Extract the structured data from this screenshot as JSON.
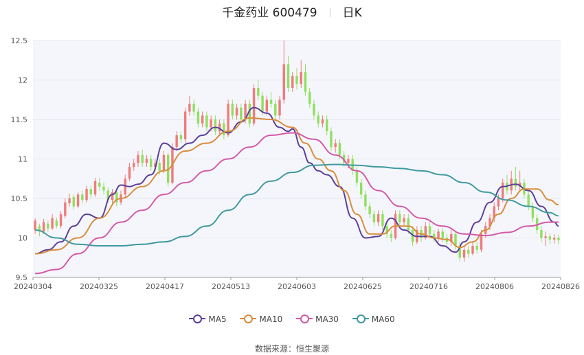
{
  "header": {
    "stock_name": "千金药业 600479",
    "period": "日K"
  },
  "legend": [
    {
      "label": "MA5",
      "color": "#5b3f9a"
    },
    {
      "label": "MA10",
      "color": "#d98c3a"
    },
    {
      "label": "MA30",
      "color": "#d359a8"
    },
    {
      "label": "MA60",
      "color": "#3f9aa0"
    }
  ],
  "source": {
    "label": "数据来源：",
    "name": "恒生聚源"
  },
  "colors": {
    "up": "#f07b7b",
    "down": "#90e060"
  },
  "chart_data": {
    "type": "candlestick",
    "ylim": [
      9.5,
      12.5
    ],
    "y_ticks": [
      "9.5",
      "10",
      "10.5",
      "11",
      "11.5",
      "12",
      "12.5"
    ],
    "x_ticks": [
      "20240304",
      "20240325",
      "20240417",
      "20240513",
      "20240603",
      "20240625",
      "20240716",
      "20240806",
      "20240826"
    ],
    "n_days": 123,
    "candles": [
      [
        10.1,
        10.22,
        10.05,
        10.25
      ],
      [
        10.15,
        10.08,
        10.02,
        10.18
      ],
      [
        10.08,
        10.2,
        10.05,
        10.24
      ],
      [
        10.18,
        10.12,
        10.08,
        10.22
      ],
      [
        10.12,
        10.25,
        10.1,
        10.3
      ],
      [
        10.22,
        10.15,
        10.12,
        10.26
      ],
      [
        10.15,
        10.3,
        10.12,
        10.34
      ],
      [
        10.28,
        10.45,
        10.25,
        10.5
      ],
      [
        10.44,
        10.5,
        10.4,
        10.56
      ],
      [
        10.52,
        10.4,
        10.36,
        10.55
      ],
      [
        10.4,
        10.55,
        10.38,
        10.58
      ],
      [
        10.55,
        10.48,
        10.44,
        10.6
      ],
      [
        10.48,
        10.62,
        10.45,
        10.66
      ],
      [
        10.62,
        10.55,
        10.5,
        10.66
      ],
      [
        10.55,
        10.72,
        10.52,
        10.76
      ],
      [
        10.7,
        10.65,
        10.6,
        10.76
      ],
      [
        10.65,
        10.6,
        10.55,
        10.7
      ],
      [
        10.6,
        10.48,
        10.44,
        10.64
      ],
      [
        10.48,
        10.58,
        10.44,
        10.62
      ],
      [
        10.58,
        10.45,
        10.4,
        10.62
      ],
      [
        10.45,
        10.55,
        10.42,
        10.6
      ],
      [
        10.55,
        10.75,
        10.52,
        10.8
      ],
      [
        10.75,
        10.9,
        10.72,
        10.95
      ],
      [
        10.9,
        10.95,
        10.85,
        11.0
      ],
      [
        10.95,
        11.05,
        10.9,
        11.1
      ],
      [
        11.05,
        10.95,
        10.9,
        11.12
      ],
      [
        10.95,
        11.0,
        10.9,
        11.05
      ],
      [
        11.0,
        10.9,
        10.85,
        11.05
      ],
      [
        10.9,
        10.95,
        10.85,
        11.0
      ],
      [
        10.95,
        10.85,
        10.8,
        11.0
      ],
      [
        10.85,
        11.05,
        10.82,
        11.1
      ],
      [
        11.05,
        10.7,
        10.65,
        11.08
      ],
      [
        10.7,
        11.15,
        10.68,
        11.2
      ],
      [
        11.15,
        11.3,
        11.1,
        11.35
      ],
      [
        11.3,
        11.25,
        11.2,
        11.35
      ],
      [
        11.25,
        11.6,
        11.2,
        11.65
      ],
      [
        11.6,
        11.7,
        11.55,
        11.8
      ],
      [
        11.7,
        11.6,
        11.55,
        11.75
      ],
      [
        11.6,
        11.45,
        11.4,
        11.65
      ],
      [
        11.45,
        11.55,
        11.4,
        11.6
      ],
      [
        11.55,
        11.4,
        11.35,
        11.6
      ],
      [
        11.4,
        11.5,
        11.35,
        11.55
      ],
      [
        11.5,
        11.35,
        11.3,
        11.55
      ],
      [
        11.35,
        11.45,
        11.3,
        11.5
      ],
      [
        11.45,
        11.3,
        11.25,
        11.5
      ],
      [
        11.3,
        11.7,
        11.28,
        11.75
      ],
      [
        11.7,
        11.55,
        11.5,
        11.75
      ],
      [
        11.55,
        11.65,
        11.5,
        11.7
      ],
      [
        11.65,
        11.5,
        11.45,
        11.7
      ],
      [
        11.5,
        11.7,
        11.45,
        11.75
      ],
      [
        11.7,
        11.45,
        11.4,
        11.75
      ],
      [
        11.45,
        11.9,
        11.42,
        11.95
      ],
      [
        11.9,
        11.8,
        11.75,
        12.0
      ],
      [
        11.8,
        11.6,
        11.55,
        11.85
      ],
      [
        11.6,
        11.75,
        11.55,
        11.8
      ],
      [
        11.75,
        11.7,
        11.65,
        11.85
      ],
      [
        11.7,
        11.55,
        11.5,
        11.75
      ],
      [
        11.55,
        11.75,
        11.5,
        11.8
      ],
      [
        11.75,
        12.2,
        11.7,
        12.5
      ],
      [
        12.2,
        11.9,
        11.85,
        12.3
      ],
      [
        11.9,
        12.05,
        11.85,
        12.1
      ],
      [
        12.05,
        11.95,
        11.88,
        12.15
      ],
      [
        11.95,
        12.1,
        11.9,
        12.25
      ],
      [
        12.1,
        11.85,
        11.8,
        12.2
      ],
      [
        11.85,
        11.7,
        11.65,
        11.9
      ],
      [
        11.7,
        11.55,
        11.5,
        11.75
      ],
      [
        11.55,
        11.45,
        11.4,
        11.6
      ],
      [
        11.45,
        11.5,
        11.4,
        11.55
      ],
      [
        11.5,
        11.35,
        11.3,
        11.55
      ],
      [
        11.35,
        11.15,
        11.1,
        11.4
      ],
      [
        11.15,
        11.2,
        11.08,
        11.25
      ],
      [
        11.2,
        11.05,
        11.0,
        11.25
      ],
      [
        11.05,
        10.95,
        10.9,
        11.1
      ],
      [
        10.95,
        11.0,
        10.88,
        11.05
      ],
      [
        11.0,
        10.85,
        10.8,
        11.05
      ],
      [
        10.85,
        10.7,
        10.65,
        10.9
      ],
      [
        10.7,
        10.55,
        10.5,
        10.75
      ],
      [
        10.55,
        10.4,
        10.35,
        10.6
      ],
      [
        10.4,
        10.3,
        10.25,
        10.45
      ],
      [
        10.3,
        10.2,
        10.15,
        10.35
      ],
      [
        10.2,
        10.3,
        10.15,
        10.35
      ],
      [
        10.3,
        10.15,
        10.1,
        10.35
      ],
      [
        10.15,
        10.05,
        10.0,
        10.2
      ],
      [
        10.05,
        10.0,
        9.95,
        10.1
      ],
      [
        10.0,
        10.3,
        9.98,
        10.35
      ],
      [
        10.3,
        10.2,
        10.15,
        10.35
      ],
      [
        10.2,
        10.25,
        10.15,
        10.3
      ],
      [
        10.25,
        10.1,
        10.05,
        10.3
      ],
      [
        10.1,
        9.95,
        9.9,
        10.15
      ],
      [
        9.95,
        10.1,
        9.92,
        10.15
      ],
      [
        10.1,
        10.0,
        9.95,
        10.15
      ],
      [
        10.0,
        10.15,
        9.98,
        10.2
      ],
      [
        10.15,
        10.05,
        10.0,
        10.2
      ],
      [
        10.05,
        10.0,
        9.95,
        10.1
      ],
      [
        10.0,
        10.08,
        9.95,
        10.12
      ],
      [
        10.08,
        10.0,
        9.95,
        10.12
      ],
      [
        10.0,
        9.95,
        9.9,
        10.05
      ],
      [
        9.95,
        10.05,
        9.9,
        10.1
      ],
      [
        10.05,
        9.9,
        9.85,
        10.08
      ],
      [
        9.9,
        9.75,
        9.7,
        9.95
      ],
      [
        9.75,
        9.85,
        9.7,
        9.9
      ],
      [
        9.85,
        9.8,
        9.75,
        9.9
      ],
      [
        9.8,
        9.9,
        9.78,
        9.95
      ],
      [
        9.9,
        9.85,
        9.8,
        9.95
      ],
      [
        9.85,
        10.05,
        9.82,
        10.1
      ],
      [
        10.05,
        10.15,
        10.0,
        10.2
      ],
      [
        10.15,
        10.25,
        10.1,
        10.3
      ],
      [
        10.25,
        10.4,
        10.2,
        10.45
      ],
      [
        10.4,
        10.5,
        10.35,
        10.55
      ],
      [
        10.5,
        10.7,
        10.45,
        10.75
      ],
      [
        10.7,
        10.6,
        10.55,
        10.8
      ],
      [
        10.6,
        10.75,
        10.55,
        10.85
      ],
      [
        10.75,
        10.65,
        10.6,
        10.9
      ],
      [
        10.65,
        10.7,
        10.6,
        10.85
      ],
      [
        10.7,
        10.55,
        10.5,
        10.75
      ],
      [
        10.55,
        10.4,
        10.35,
        10.6
      ],
      [
        10.4,
        10.25,
        10.2,
        10.45
      ],
      [
        10.25,
        10.1,
        10.05,
        10.3
      ],
      [
        10.1,
        10.0,
        9.95,
        10.15
      ],
      [
        10.0,
        10.02,
        9.9,
        10.08
      ],
      [
        10.02,
        9.98,
        9.92,
        10.06
      ],
      [
        9.98,
        10.0,
        9.93,
        10.05
      ],
      [
        10.0,
        9.97,
        9.92,
        10.04
      ]
    ],
    "series": [
      {
        "name": "MA5",
        "x": [
          0,
          3,
          6,
          9,
          12,
          15,
          18,
          20,
          22,
          24,
          27,
          30,
          33,
          36,
          39,
          42,
          45,
          48,
          51,
          54,
          57,
          59,
          60,
          62,
          64,
          66,
          68,
          71,
          74,
          77,
          80,
          83,
          86,
          89,
          92,
          95,
          98,
          100,
          103,
          106,
          109,
          112,
          115,
          118,
          121,
          122
        ],
        "y": [
          9.8,
          9.85,
          9.95,
          10.15,
          10.3,
          10.25,
          10.55,
          10.67,
          10.65,
          10.68,
          10.8,
          11.2,
          11.12,
          11.2,
          11.3,
          11.4,
          11.33,
          11.47,
          11.65,
          11.58,
          11.4,
          11.35,
          11.38,
          11.15,
          10.95,
          10.85,
          10.8,
          10.65,
          10.25,
          10.0,
          10.02,
          10.25,
          10.1,
          10.02,
          10.02,
          9.9,
          9.82,
          9.95,
          10.2,
          10.45,
          10.65,
          10.68,
          10.6,
          10.4,
          10.2,
          10.15
        ]
      },
      {
        "name": "MA10",
        "x": [
          0,
          5,
          10,
          15,
          20,
          25,
          30,
          35,
          40,
          45,
          50,
          55,
          60,
          63,
          66,
          69,
          72,
          75,
          78,
          81,
          84,
          87,
          90,
          93,
          96,
          99,
          102,
          105,
          108,
          111,
          114,
          117,
          120,
          122
        ],
        "y": [
          9.8,
          9.85,
          10.0,
          10.25,
          10.5,
          10.65,
          10.85,
          11.1,
          11.2,
          11.35,
          11.52,
          11.5,
          11.4,
          11.2,
          11.0,
          10.85,
          10.6,
          10.3,
          10.05,
          10.05,
          10.15,
          10.15,
          10.05,
          10.0,
          9.98,
          9.88,
          9.95,
          10.1,
          10.3,
          10.5,
          10.62,
          10.62,
          10.48,
          10.42
        ]
      },
      {
        "name": "MA30",
        "x": [
          0,
          5,
          10,
          15,
          20,
          25,
          30,
          35,
          40,
          45,
          50,
          55,
          60,
          65,
          70,
          75,
          80,
          85,
          90,
          95,
          100,
          105,
          110,
          115,
          120,
          122
        ],
        "y": [
          9.55,
          9.6,
          9.8,
          10.0,
          10.2,
          10.35,
          10.55,
          10.7,
          10.85,
          11.0,
          11.15,
          11.3,
          11.33,
          11.25,
          11.05,
          10.85,
          10.6,
          10.4,
          10.25,
          10.15,
          10.05,
          10.03,
          10.07,
          10.15,
          10.2,
          10.2
        ]
      },
      {
        "name": "MA60",
        "x": [
          0,
          5,
          10,
          15,
          20,
          25,
          30,
          35,
          40,
          45,
          50,
          55,
          60,
          65,
          70,
          75,
          80,
          85,
          90,
          95,
          100,
          105,
          110,
          115,
          120,
          122
        ],
        "y": [
          10.1,
          10.0,
          9.92,
          9.9,
          9.9,
          9.92,
          9.95,
          10.02,
          10.15,
          10.35,
          10.55,
          10.72,
          10.83,
          10.92,
          10.93,
          10.92,
          10.9,
          10.88,
          10.85,
          10.8,
          10.7,
          10.58,
          10.48,
          10.4,
          10.32,
          10.28
        ]
      }
    ]
  }
}
